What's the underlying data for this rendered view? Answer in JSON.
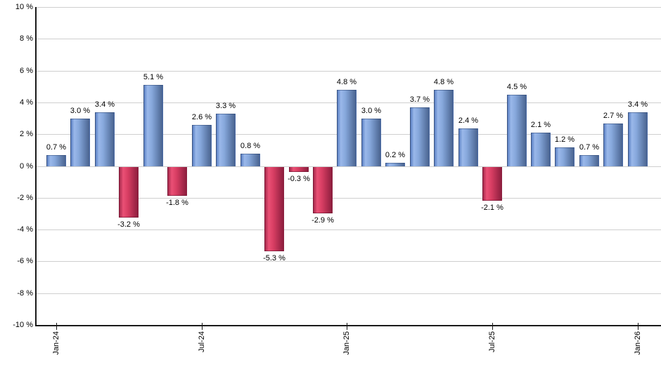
{
  "chart_data": {
    "type": "bar",
    "title": "",
    "xlabel": "",
    "ylabel": "",
    "ylim": [
      -10,
      10
    ],
    "grid": true,
    "legend": "none",
    "categories": [
      "Jan-24",
      "Feb-24",
      "Mar-24",
      "Apr-24",
      "May-24",
      "Jun-24",
      "Jul-24",
      "Aug-24",
      "Sep-24",
      "Oct-24",
      "Nov-24",
      "Dec-24",
      "Jan-25",
      "Feb-25",
      "Mar-25",
      "Apr-25",
      "May-25",
      "Jun-25",
      "Jul-25",
      "Aug-25",
      "Sep-25",
      "Oct-25",
      "Nov-25",
      "Dec-25",
      "Jan-26"
    ],
    "values": [
      0.7,
      3.0,
      3.4,
      -3.2,
      5.1,
      -1.8,
      2.6,
      3.3,
      0.8,
      -5.3,
      -0.3,
      -2.9,
      4.8,
      3.0,
      0.2,
      3.7,
      4.8,
      2.4,
      -2.1,
      4.5,
      2.1,
      1.2,
      0.7,
      2.7,
      3.4
    ],
    "value_labels": [
      "0.7 %",
      "3.0 %",
      "3.4 %",
      "-3.2 %",
      "5.1 %",
      "-1.8 %",
      "2.6 %",
      "3.3 %",
      "0.8 %",
      "-5.3 %",
      "-0.3 %",
      "-2.9 %",
      "4.8 %",
      "3.0 %",
      "0.2 %",
      "3.7 %",
      "4.8 %",
      "2.4 %",
      "-2.1 %",
      "4.5 %",
      "2.1 %",
      "1.2 %",
      "0.7 %",
      "2.7 %",
      "3.4 %"
    ],
    "y_ticks": [
      {
        "value": 10,
        "label": "10 %"
      },
      {
        "value": 8,
        "label": "8 %"
      },
      {
        "value": 6,
        "label": "6 %"
      },
      {
        "value": 4,
        "label": "4 %"
      },
      {
        "value": 2,
        "label": "2 %"
      },
      {
        "value": 0,
        "label": "0 %"
      },
      {
        "value": -2,
        "label": "-2 %"
      },
      {
        "value": -4,
        "label": "-4 %"
      },
      {
        "value": -6,
        "label": "-6 %"
      },
      {
        "value": -8,
        "label": "-8 %"
      },
      {
        "value": -10,
        "label": "-10 %"
      }
    ],
    "x_ticks": [
      {
        "index": 0,
        "label": "Jan-24"
      },
      {
        "index": 6,
        "label": "Jul-24"
      },
      {
        "index": 12,
        "label": "Jan-25"
      },
      {
        "index": 18,
        "label": "Jul-25"
      },
      {
        "index": 24,
        "label": "Jan-26"
      }
    ],
    "colors": {
      "positive_bar_light": "#9ab8ea",
      "positive_bar_main": "#87a8dc",
      "positive_bar_dark": "#4a6490",
      "positive_bar_edge": "#5b80c4",
      "negative_bar_light": "#ea5075",
      "negative_bar_main": "#d83e63",
      "negative_bar_dark": "#8e1e3e",
      "negative_bar_edge": "#a62a4c",
      "gridline": "#cfcfcf",
      "axis": "#1a1a1a",
      "background": "#ffffff",
      "label_text": "#000000"
    }
  }
}
